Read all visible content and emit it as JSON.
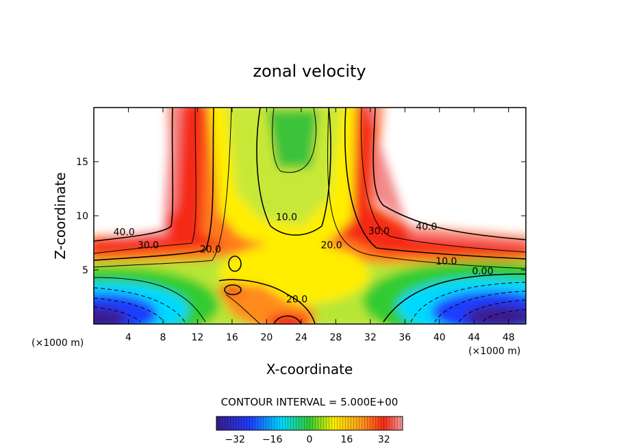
{
  "colors": {
    "neg_deep": "#3a1c8c",
    "neg_blue": "#1f3cff",
    "cyan": "#00d9ff",
    "green": "#33cc33",
    "yellow_green": "#b8e635",
    "yellow": "#ffee00",
    "orange": "#ff9a1a",
    "red": "#f52a14",
    "pink": "#f28a8a",
    "line": "#000000"
  },
  "chart_data": {
    "type": "contour",
    "title": "zonal velocity",
    "xlabel": "X-coordinate",
    "ylabel": "Z-coordinate",
    "x_unit_label": "(×1000 m)",
    "z_unit_label": "(×1000 m)",
    "xlim": [
      0,
      50
    ],
    "zlim": [
      0,
      20
    ],
    "x_ticks": [
      4,
      8,
      12,
      16,
      20,
      24,
      28,
      32,
      36,
      40,
      44,
      48
    ],
    "z_ticks": [
      5,
      10,
      15
    ],
    "contour_interval_label": "CONTOUR INTERVAL = 5.000E+00",
    "colorbar": {
      "min": -40,
      "max": 40,
      "ticks": [
        -32,
        -16,
        0,
        16,
        32
      ]
    },
    "contour_labels": [
      {
        "text": "40.0",
        "x": 3.5,
        "z": 8.2
      },
      {
        "text": "30.0",
        "x": 6.3,
        "z": 7.0
      },
      {
        "text": "20.0",
        "x": 13.5,
        "z": 6.6
      },
      {
        "text": "10.0",
        "x": 22.3,
        "z": 9.6
      },
      {
        "text": "20.0",
        "x": 27.5,
        "z": 7.0
      },
      {
        "text": "30.0",
        "x": 33.0,
        "z": 8.3
      },
      {
        "text": "40.0",
        "x": 38.5,
        "z": 8.7
      },
      {
        "text": "10.0",
        "x": 40.8,
        "z": 5.5
      },
      {
        "text": "0.00",
        "x": 45.0,
        "z": 4.6
      },
      {
        "text": "20.0",
        "x": 23.5,
        "z": 2.0
      }
    ]
  }
}
